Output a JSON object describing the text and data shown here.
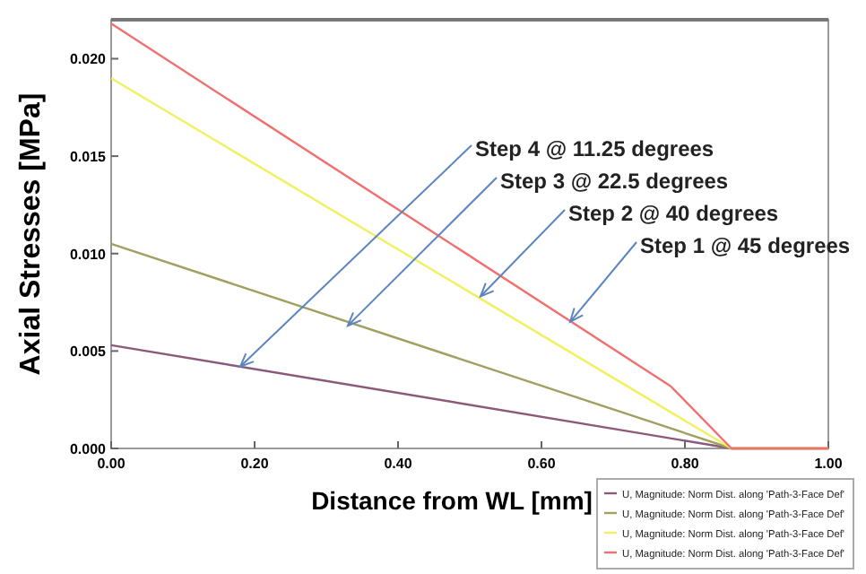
{
  "chart_data": {
    "type": "line",
    "xlabel": "Distance from WL [mm]",
    "ylabel": "Axial Stresses [MPa]",
    "xlim": [
      0,
      1
    ],
    "ylim": [
      0,
      0.022
    ],
    "xticks": [
      {
        "value": 0,
        "label": "0.00"
      },
      {
        "value": 0.2,
        "label": "0.20"
      },
      {
        "value": 0.4,
        "label": "0.40"
      },
      {
        "value": 0.6,
        "label": "0.60"
      },
      {
        "value": 0.8,
        "label": "0.80"
      },
      {
        "value": 1,
        "label": "1.00"
      }
    ],
    "yticks": [
      {
        "value": 0,
        "label": "0.000"
      },
      {
        "value": 0.005,
        "label": "0.005"
      },
      {
        "value": 0.01,
        "label": "0.010"
      },
      {
        "value": 0.015,
        "label": "0.015"
      },
      {
        "value": 0.02,
        "label": "0.020"
      }
    ],
    "x": [
      0,
      0.865,
      1
    ],
    "series": [
      {
        "name": "U, Magnitude: Norm Dist. along 'Path-3-Face Def'",
        "color": "#8b5a7a",
        "values": [
          0.0053,
          0,
          0
        ]
      },
      {
        "name": "U, Magnitude: Norm Dist. along 'Path-3-Face Def'",
        "color": "#a0a060",
        "values": [
          0.0105,
          0,
          0
        ]
      },
      {
        "name": "U, Magnitude: Norm Dist. along 'Path-3-Face Def'",
        "color": "#f0f060",
        "values": [
          0.019,
          0,
          0
        ]
      },
      {
        "name": "U, Magnitude: Norm Dist. along 'Path-3-Face Def'",
        "color": "#f07070",
        "x": [
          0,
          0.78,
          0.865,
          1
        ],
        "values": [
          0.0218,
          0.0032,
          0,
          0
        ]
      }
    ],
    "annotations": [
      {
        "text": "Step 4 @ 11.25 degrees",
        "x": 0.18,
        "y": 0.0042
      },
      {
        "text": "Step 3 @ 22.5 degrees",
        "x": 0.33,
        "y": 0.0063
      },
      {
        "text": "Step 2 @ 40 degrees",
        "x": 0.515,
        "y": 0.0078
      },
      {
        "text": "Step 1 @ 45 degrees",
        "x": 0.64,
        "y": 0.0065
      }
    ],
    "grid": false,
    "legend": "bottom right",
    "marker": "none",
    "line_style": "solid"
  }
}
